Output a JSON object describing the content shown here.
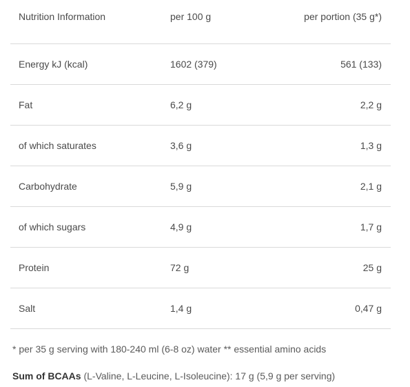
{
  "table": {
    "header": {
      "label": "Nutrition Information",
      "per100": "per 100 g",
      "portion": "per portion (35 g*)"
    },
    "rows": [
      {
        "label": "Energy kJ (kcal)",
        "per100": "1602 (379)",
        "portion": "561 (133)"
      },
      {
        "label": "Fat",
        "per100": "6,2 g",
        "portion": "2,2 g"
      },
      {
        "label": "of which saturates",
        "per100": "3,6 g",
        "portion": "1,3 g"
      },
      {
        "label": "Carbohydrate",
        "per100": "5,9 g",
        "portion": "2,1 g"
      },
      {
        "label": "of which sugars",
        "per100": "4,9 g",
        "portion": "1,7 g"
      },
      {
        "label": "Protein",
        "per100": "72 g",
        "portion": "25 g"
      },
      {
        "label": "Salt",
        "per100": "1,4 g",
        "portion": "0,47 g"
      }
    ]
  },
  "footnote": "* per 35 g serving with 180-240 ml (6-8 oz) water ** essential amino acids",
  "bcaa": {
    "title": "Sum of BCAAs",
    "detail": " (L-Valine, L-Leucine, L-Isoleucine): 17 g (5,9 g per serving)"
  }
}
